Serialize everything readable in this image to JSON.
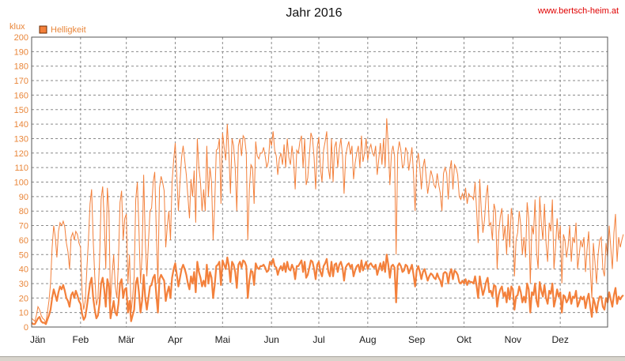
{
  "colors": {
    "series": "#f3803b",
    "axis_text": "#e9863a",
    "grid": "#8a8a8a",
    "watermark": "#e00000"
  },
  "chart_data": {
    "type": "line",
    "title": "Jahr 2016",
    "watermark": "www.bertsch-heim.at",
    "ylabel": "klux",
    "xlabel": "",
    "ylim": [
      0,
      200
    ],
    "yticks": [
      0,
      10,
      20,
      30,
      40,
      50,
      60,
      70,
      80,
      90,
      100,
      110,
      120,
      130,
      140,
      150,
      160,
      170,
      180,
      190,
      200
    ],
    "x_domain_days": [
      1,
      366
    ],
    "month_ticks": [
      {
        "label": "Jän",
        "day": 1
      },
      {
        "label": "Feb",
        "day": 32
      },
      {
        "label": "Mär",
        "day": 61
      },
      {
        "label": "Apr",
        "day": 92
      },
      {
        "label": "Mai",
        "day": 122
      },
      {
        "label": "Jun",
        "day": 153
      },
      {
        "label": "Jul",
        "day": 183
      },
      {
        "label": "Aug",
        "day": 214
      },
      {
        "label": "Sep",
        "day": 245
      },
      {
        "label": "Okt",
        "day": 275
      },
      {
        "label": "Nov",
        "day": 306
      },
      {
        "label": "Dez",
        "day": 336
      }
    ],
    "grid": true,
    "legend_position": "top-left",
    "series": [
      {
        "name": "Helligkeit",
        "note": "daily maximum (thin line) and daily mean (thick line), approximate values",
        "daily_max": [
          6,
          5,
          4,
          8,
          14,
          12,
          8,
          6,
          5,
          3,
          10,
          18,
          30,
          55,
          70,
          62,
          48,
          66,
          72,
          70,
          73,
          69,
          58,
          52,
          40,
          62,
          65,
          60,
          66,
          64,
          58,
          55,
          24,
          12,
          18,
          40,
          60,
          85,
          95,
          60,
          35,
          15,
          20,
          45,
          88,
          97,
          74,
          40,
          96,
          80,
          16,
          36,
          50,
          28,
          20,
          45,
          86,
          94,
          60,
          75,
          78,
          30,
          50,
          10,
          20,
          35,
          88,
          100,
          68,
          30,
          50,
          105,
          60,
          35,
          58,
          80,
          82,
          100,
          107,
          65,
          30,
          96,
          104,
          100,
          94,
          55,
          70,
          80,
          60,
          100,
          115,
          127,
          104,
          80,
          100,
          117,
          125,
          115,
          105,
          90,
          75,
          102,
          90,
          108,
          72,
          130,
          110,
          100,
          80,
          95,
          80,
          125,
          90,
          110,
          100,
          60,
          85,
          122,
          123,
          130,
          85,
          134,
          124,
          115,
          140,
          120,
          92,
          130,
          125,
          110,
          80,
          125,
          130,
          118,
          132,
          130,
          120,
          60,
          95,
          112,
          110,
          85,
          128,
          118,
          116,
          120,
          120,
          124,
          118,
          110,
          114,
          130,
          125,
          135,
          122,
          118,
          105,
          116,
          120,
          112,
          126,
          110,
          130,
          117,
          112,
          125,
          115,
          95,
          122,
          120,
          128,
          132,
          110,
          130,
          98,
          103,
          118,
          134,
          130,
          117,
          95,
          124,
          131,
          110,
          100,
          122,
          128,
          135,
          110,
          102,
          130,
          100,
          124,
          128,
          110,
          123,
          130,
          118,
          92,
          118,
          124,
          128,
          119,
          125,
          102,
          113,
          120,
          125,
          110,
          132,
          114,
          120,
          130,
          115,
          123,
          126,
          120,
          118,
          125,
          105,
          116,
          127,
          112,
          130,
          110,
          144,
          125,
          98,
          120,
          125,
          118,
          50,
          120,
          128,
          122,
          110,
          112,
          124,
          121,
          108,
          116,
          124,
          105,
          80,
          112,
          120,
          110,
          95,
          110,
          116,
          104,
          92,
          100,
          108,
          104,
          98,
          96,
          106,
          98,
          92,
          80,
          106,
          110,
          106,
          88,
          108,
          115,
          95,
          112,
          110,
          105,
          90,
          88,
          92,
          88,
          96,
          85,
          92,
          90,
          90,
          88,
          100,
          80,
          58,
          102,
          80,
          65,
          74,
          90,
          98,
          70,
          72,
          60,
          85,
          80,
          40,
          65,
          76,
          82,
          60,
          70,
          50,
          78,
          55,
          82,
          74,
          35,
          60,
          65,
          80,
          70,
          50,
          62,
          48,
          86,
          75,
          30,
          70,
          64,
          88,
          52,
          40,
          90,
          72,
          60,
          85,
          58,
          45,
          72,
          66,
          88,
          40,
          55,
          75,
          60,
          70,
          30,
          64,
          60,
          48,
          56,
          70,
          45,
          62,
          58,
          72,
          40,
          50,
          60,
          55,
          62,
          38,
          54,
          66,
          40,
          20,
          58,
          45,
          30,
          50,
          60,
          62,
          40,
          35,
          58,
          48,
          70,
          55,
          40,
          65,
          78,
          45,
          62,
          55,
          60,
          64
        ],
        "daily_mean": [
          3,
          2,
          2,
          4,
          6,
          7,
          4,
          3,
          3,
          2,
          5,
          8,
          12,
          20,
          26,
          22,
          18,
          24,
          28,
          26,
          29,
          25,
          20,
          18,
          14,
          22,
          24,
          20,
          25,
          22,
          18,
          16,
          9,
          5,
          7,
          14,
          22,
          30,
          34,
          20,
          12,
          6,
          8,
          16,
          30,
          34,
          26,
          14,
          33,
          28,
          6,
          12,
          18,
          10,
          8,
          16,
          30,
          33,
          20,
          26,
          27,
          10,
          18,
          4,
          8,
          12,
          30,
          34,
          24,
          10,
          18,
          36,
          20,
          12,
          20,
          28,
          29,
          34,
          36,
          22,
          10,
          33,
          36,
          34,
          32,
          18,
          24,
          28,
          20,
          34,
          40,
          44,
          36,
          28,
          34,
          40,
          43,
          40,
          36,
          30,
          26,
          35,
          30,
          38,
          24,
          45,
          38,
          34,
          28,
          32,
          28,
          43,
          30,
          38,
          34,
          20,
          29,
          42,
          43,
          45,
          29,
          46,
          43,
          40,
          48,
          42,
          31,
          45,
          43,
          38,
          27,
          43,
          45,
          41,
          46,
          45,
          42,
          20,
          32,
          39,
          38,
          29,
          44,
          41,
          40,
          42,
          42,
          43,
          41,
          38,
          39,
          45,
          43,
          47,
          42,
          41,
          36,
          40,
          42,
          39,
          44,
          38,
          45,
          40,
          39,
          43,
          40,
          33,
          42,
          42,
          44,
          46,
          38,
          45,
          34,
          36,
          41,
          46,
          45,
          40,
          33,
          43,
          45,
          38,
          35,
          42,
          44,
          47,
          38,
          35,
          45,
          35,
          43,
          44,
          38,
          43,
          45,
          41,
          32,
          41,
          43,
          44,
          41,
          43,
          35,
          39,
          42,
          43,
          38,
          46,
          39,
          42,
          45,
          40,
          43,
          44,
          42,
          41,
          43,
          36,
          40,
          44,
          39,
          45,
          38,
          50,
          43,
          34,
          42,
          43,
          41,
          17,
          42,
          44,
          42,
          38,
          39,
          43,
          42,
          37,
          40,
          43,
          36,
          28,
          39,
          42,
          38,
          33,
          38,
          40,
          36,
          32,
          35,
          37,
          36,
          34,
          33,
          37,
          34,
          32,
          28,
          37,
          38,
          37,
          30,
          37,
          40,
          33,
          39,
          38,
          36,
          31,
          30,
          32,
          30,
          33,
          29,
          32,
          31,
          31,
          30,
          35,
          28,
          20,
          35,
          28,
          22,
          26,
          31,
          34,
          24,
          25,
          21,
          29,
          28,
          14,
          22,
          26,
          28,
          21,
          24,
          17,
          27,
          19,
          28,
          26,
          12,
          21,
          22,
          28,
          24,
          17,
          21,
          17,
          30,
          26,
          10,
          24,
          22,
          30,
          18,
          14,
          31,
          25,
          21,
          29,
          20,
          16,
          25,
          23,
          30,
          14,
          19,
          26,
          21,
          24,
          10,
          22,
          21,
          17,
          19,
          24,
          16,
          21,
          20,
          25,
          14,
          17,
          21,
          19,
          21,
          13,
          19,
          23,
          14,
          7,
          20,
          16,
          10,
          17,
          21,
          21,
          14,
          12,
          20,
          17,
          24,
          19,
          14,
          22,
          27,
          16,
          21,
          19,
          21,
          22
        ]
      }
    ]
  }
}
